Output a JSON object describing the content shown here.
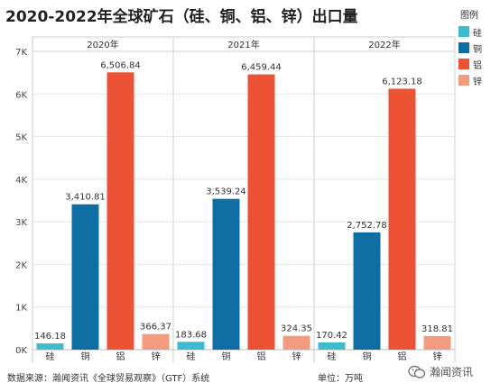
{
  "chart_data": {
    "type": "bar",
    "title": "2020-2022年全球矿石（硅、铜、铝、锌）出口量",
    "panels": [
      "2020年",
      "2021年",
      "2022年"
    ],
    "categories": [
      "硅",
      "铜",
      "铝",
      "锌"
    ],
    "values": [
      [
        146.18,
        3410.81,
        6506.84,
        366.37
      ],
      [
        183.68,
        3539.24,
        6459.44,
        324.35
      ],
      [
        170.42,
        2752.78,
        6123.18,
        318.81
      ]
    ],
    "value_labels": [
      [
        "146.18",
        "3,410.81",
        "6,506.84",
        "366.37"
      ],
      [
        "183.68",
        "3,539.24",
        "6,459.44",
        "324.35"
      ],
      [
        "170.42",
        "2,752.78",
        "6,123.18",
        "318.81"
      ]
    ],
    "ylim": [
      0,
      7000
    ],
    "yticks": [
      0,
      1000,
      2000,
      3000,
      4000,
      5000,
      6000,
      7000
    ],
    "ytick_labels": [
      "0K",
      "1K",
      "2K",
      "3K",
      "4K",
      "5K",
      "6K",
      "7K"
    ],
    "grid": true,
    "legend": {
      "title": "图例",
      "placement": "right",
      "entries": [
        "硅",
        "铜",
        "铝",
        "锌"
      ]
    },
    "colors": [
      "#3dbcd0",
      "#0e6ea3",
      "#ec5334",
      "#f39b7f"
    ]
  },
  "footer": {
    "source": "数据来源：瀚闻资讯《全球贸易观察》（GTF）系统",
    "unit": "单位：万吨"
  },
  "watermark": {
    "icon": "wechat-icon",
    "text": "瀚闻资讯"
  }
}
